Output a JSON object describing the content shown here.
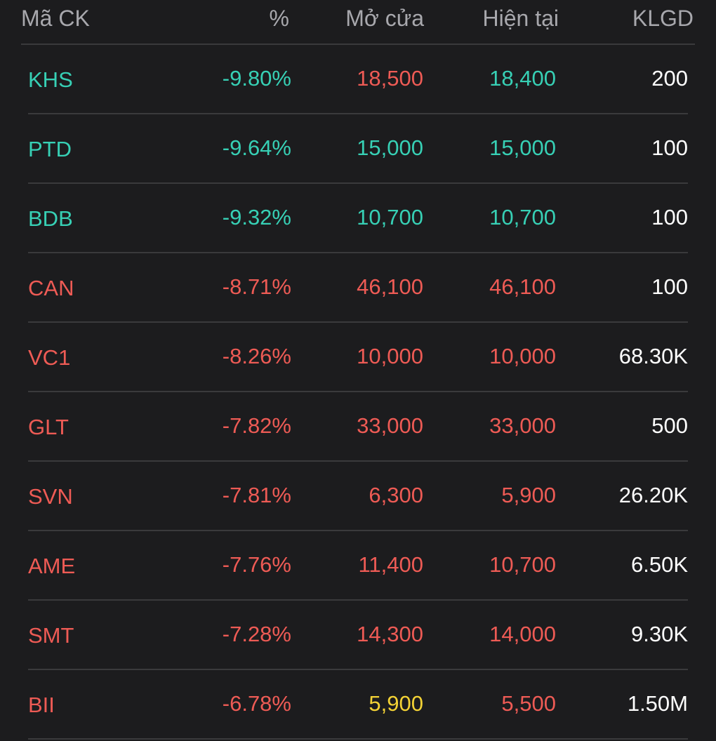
{
  "header": {
    "symbol": "Mã CK",
    "percent": "%",
    "open": "Mở cửa",
    "current": "Hiện tại",
    "volume": "KLGD"
  },
  "colors": {
    "background": "#1c1c1e",
    "down": "#ee5b55",
    "floor": "#37d0b5",
    "reference": "#f3d235",
    "neutral": "#ffffff",
    "header_text": "#a8a8ad",
    "divider": "#3a3a3c"
  },
  "rows": [
    {
      "symbol": "KHS",
      "percent": "-9.80%",
      "open": "18,500",
      "current": "18,400",
      "volume": "200",
      "symbol_status": "floor",
      "percent_status": "floor",
      "open_status": "down",
      "current_status": "floor"
    },
    {
      "symbol": "PTD",
      "percent": "-9.64%",
      "open": "15,000",
      "current": "15,000",
      "volume": "100",
      "symbol_status": "floor",
      "percent_status": "floor",
      "open_status": "floor",
      "current_status": "floor"
    },
    {
      "symbol": "BDB",
      "percent": "-9.32%",
      "open": "10,700",
      "current": "10,700",
      "volume": "100",
      "symbol_status": "floor",
      "percent_status": "floor",
      "open_status": "floor",
      "current_status": "floor"
    },
    {
      "symbol": "CAN",
      "percent": "-8.71%",
      "open": "46,100",
      "current": "46,100",
      "volume": "100",
      "symbol_status": "down",
      "percent_status": "down",
      "open_status": "down",
      "current_status": "down"
    },
    {
      "symbol": "VC1",
      "percent": "-8.26%",
      "open": "10,000",
      "current": "10,000",
      "volume": "68.30K",
      "symbol_status": "down",
      "percent_status": "down",
      "open_status": "down",
      "current_status": "down"
    },
    {
      "symbol": "GLT",
      "percent": "-7.82%",
      "open": "33,000",
      "current": "33,000",
      "volume": "500",
      "symbol_status": "down",
      "percent_status": "down",
      "open_status": "down",
      "current_status": "down"
    },
    {
      "symbol": "SVN",
      "percent": "-7.81%",
      "open": "6,300",
      "current": "5,900",
      "volume": "26.20K",
      "symbol_status": "down",
      "percent_status": "down",
      "open_status": "down",
      "current_status": "down"
    },
    {
      "symbol": "AME",
      "percent": "-7.76%",
      "open": "11,400",
      "current": "10,700",
      "volume": "6.50K",
      "symbol_status": "down",
      "percent_status": "down",
      "open_status": "down",
      "current_status": "down"
    },
    {
      "symbol": "SMT",
      "percent": "-7.28%",
      "open": "14,300",
      "current": "14,000",
      "volume": "9.30K",
      "symbol_status": "down",
      "percent_status": "down",
      "open_status": "down",
      "current_status": "down"
    },
    {
      "symbol": "BII",
      "percent": "-6.78%",
      "open": "5,900",
      "current": "5,500",
      "volume": "1.50M",
      "symbol_status": "down",
      "percent_status": "down",
      "open_status": "ref",
      "current_status": "down"
    }
  ]
}
